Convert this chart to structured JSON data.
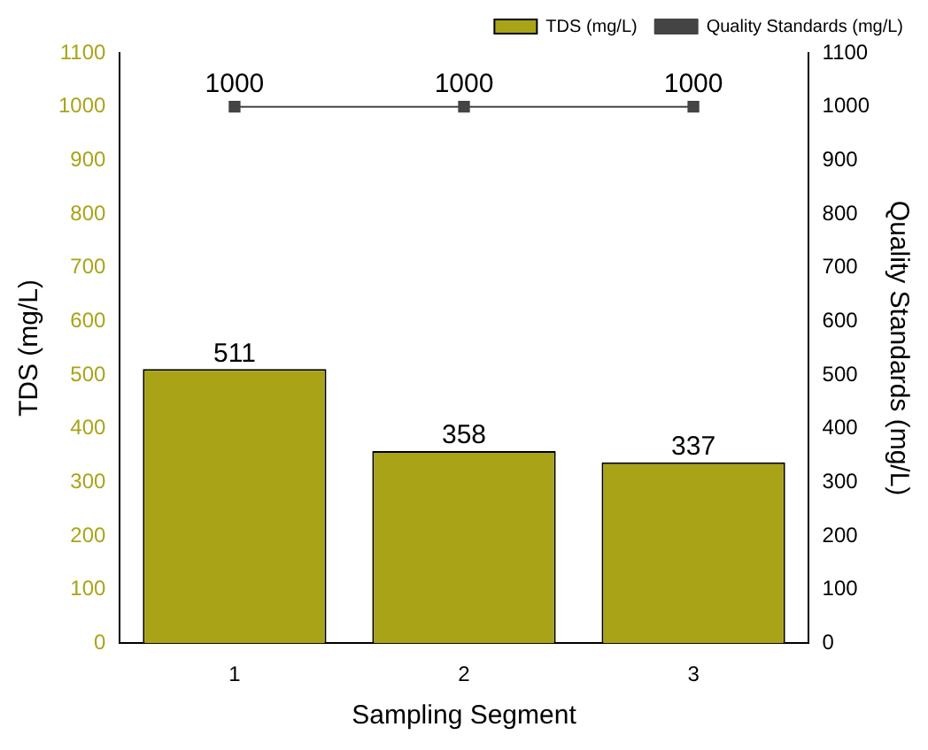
{
  "chart_data": {
    "type": "bar",
    "xlabel": "Sampling Segment",
    "ylabel": "TDS (mg/L)",
    "y2label": "Quality Standards (mg/L)",
    "categories": [
      "1",
      "2",
      "3"
    ],
    "series": [
      {
        "name": "TDS (mg/L)",
        "color": "#a9a318",
        "values": [
          511,
          358,
          337
        ]
      },
      {
        "name": "Quality Standards (mg/L)",
        "type": "line",
        "axis": "y2",
        "color": "#444444",
        "marker": "square",
        "values": [
          1000,
          1000,
          1000
        ]
      }
    ],
    "ylim": [
      0,
      1100
    ],
    "yticks": [
      0,
      100,
      200,
      300,
      400,
      500,
      600,
      700,
      800,
      900,
      1000,
      1100
    ],
    "y2lim": [
      0,
      1100
    ],
    "y2ticks": [
      0,
      100,
      200,
      300,
      400,
      500,
      600,
      700,
      800,
      900,
      1000,
      1100
    ],
    "data_labels": true,
    "legend": "top right",
    "grid": false
  }
}
